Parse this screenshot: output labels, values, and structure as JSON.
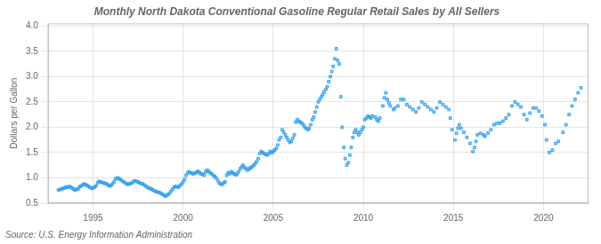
{
  "chart_data": {
    "type": "scatter",
    "title": "Monthly North Dakota Conventional Gasoline Regular Retail Sales by All Sellers",
    "ylabel": "Dollars per Gallon",
    "annotations": [
      "Source: U.S. Energy Information Administration"
    ],
    "marker": "square",
    "grid": true,
    "xlim": [
      1992.5,
      2022.5
    ],
    "ylim": [
      0.5,
      4.05
    ],
    "xticks": [
      1995,
      2000,
      2005,
      2010,
      2015,
      2020
    ],
    "yticks": [
      0.5,
      {
        "value": 1.0,
        "label": "1.0"
      },
      1.5,
      {
        "value": 2.0,
        "label": "2.0"
      },
      2.5,
      {
        "value": 3.0,
        "label": "3.0"
      },
      3.5,
      {
        "value": 4.0,
        "label": "4.0"
      }
    ],
    "x": [
      1993.08,
      1993.17,
      1993.25,
      1993.33,
      1993.42,
      1993.5,
      1993.58,
      1993.67,
      1993.75,
      1993.83,
      1993.92,
      1994.0,
      1994.08,
      1994.17,
      1994.25,
      1994.33,
      1994.42,
      1994.5,
      1994.58,
      1994.67,
      1994.75,
      1994.83,
      1994.92,
      1995.0,
      1995.08,
      1995.17,
      1995.25,
      1995.33,
      1995.42,
      1995.5,
      1995.58,
      1995.67,
      1995.75,
      1995.83,
      1995.92,
      1996.0,
      1996.08,
      1996.17,
      1996.25,
      1996.33,
      1996.42,
      1996.5,
      1996.58,
      1996.67,
      1996.75,
      1996.83,
      1996.92,
      1997.0,
      1997.08,
      1997.17,
      1997.25,
      1997.33,
      1997.42,
      1997.5,
      1997.58,
      1997.67,
      1997.75,
      1997.83,
      1997.92,
      1998.0,
      1998.08,
      1998.17,
      1998.25,
      1998.33,
      1998.42,
      1998.5,
      1998.58,
      1998.67,
      1998.75,
      1998.83,
      1998.92,
      1999.0,
      1999.08,
      1999.17,
      1999.25,
      1999.33,
      1999.42,
      1999.5,
      1999.58,
      1999.67,
      1999.75,
      1999.83,
      1999.92,
      2000.0,
      2000.08,
      2000.17,
      2000.25,
      2000.33,
      2000.42,
      2000.5,
      2000.58,
      2000.67,
      2000.75,
      2000.83,
      2000.92,
      2001.0,
      2001.08,
      2001.17,
      2001.25,
      2001.33,
      2001.42,
      2001.5,
      2001.58,
      2001.67,
      2001.75,
      2001.83,
      2001.92,
      2002.0,
      2002.08,
      2002.17,
      2002.25,
      2002.33,
      2002.42,
      2002.5,
      2002.58,
      2002.67,
      2002.75,
      2002.83,
      2002.92,
      2003.0,
      2003.08,
      2003.17,
      2003.25,
      2003.33,
      2003.42,
      2003.5,
      2003.58,
      2003.67,
      2003.75,
      2003.83,
      2003.92,
      2004.0,
      2004.08,
      2004.17,
      2004.25,
      2004.33,
      2004.42,
      2004.5,
      2004.58,
      2004.67,
      2004.75,
      2004.83,
      2004.92,
      2005.0,
      2005.08,
      2005.17,
      2005.25,
      2005.33,
      2005.42,
      2005.5,
      2005.58,
      2005.67,
      2005.75,
      2005.83,
      2005.92,
      2006.0,
      2006.08,
      2006.17,
      2006.25,
      2006.33,
      2006.42,
      2006.5,
      2006.58,
      2006.67,
      2006.75,
      2006.83,
      2006.92,
      2007.0,
      2007.08,
      2007.17,
      2007.25,
      2007.33,
      2007.42,
      2007.5,
      2007.58,
      2007.67,
      2007.75,
      2007.83,
      2007.92,
      2008.0,
      2008.08,
      2008.17,
      2008.25,
      2008.33,
      2008.42,
      2008.5,
      2008.58,
      2008.67,
      2008.75,
      2008.83,
      2008.92,
      2009.0,
      2009.08,
      2009.17,
      2009.25,
      2009.33,
      2009.42,
      2009.5,
      2009.58,
      2009.67,
      2009.75,
      2009.83,
      2009.92,
      2010.0,
      2010.08,
      2010.17,
      2010.25,
      2010.33,
      2010.42,
      2010.5,
      2010.67,
      2010.75,
      2010.83,
      2010.92,
      2011.08,
      2011.17,
      2011.25,
      2011.33,
      2011.42,
      2011.5,
      2011.67,
      2011.75,
      2011.92,
      2012.08,
      2012.25,
      2012.42,
      2012.58,
      2012.75,
      2012.92,
      2013.08,
      2013.25,
      2013.42,
      2013.58,
      2013.75,
      2013.92,
      2014.08,
      2014.25,
      2014.42,
      2014.58,
      2014.75,
      2014.83,
      2014.92,
      2015.08,
      2015.17,
      2015.25,
      2015.33,
      2015.42,
      2015.58,
      2015.75,
      2015.92,
      2016.08,
      2016.17,
      2016.25,
      2016.33,
      2016.5,
      2016.67,
      2016.75,
      2016.92,
      2017.08,
      2017.25,
      2017.42,
      2017.58,
      2017.75,
      2017.92,
      2018.08,
      2018.25,
      2018.42,
      2018.58,
      2018.75,
      2018.92,
      2019.08,
      2019.25,
      2019.42,
      2019.58,
      2019.75,
      2019.92,
      2020.08,
      2020.17,
      2020.33,
      2020.5,
      2020.67,
      2020.83,
      2021.08,
      2021.25,
      2021.42,
      2021.58,
      2021.75,
      2021.92,
      2022.08
    ],
    "values": [
      0.76,
      0.77,
      0.78,
      0.79,
      0.8,
      0.82,
      0.81,
      0.83,
      0.82,
      0.8,
      0.78,
      0.76,
      0.77,
      0.78,
      0.82,
      0.84,
      0.86,
      0.88,
      0.87,
      0.85,
      0.83,
      0.81,
      0.79,
      0.8,
      0.82,
      0.84,
      0.9,
      0.93,
      0.92,
      0.91,
      0.9,
      0.89,
      0.88,
      0.86,
      0.84,
      0.85,
      0.88,
      0.92,
      0.98,
      1.0,
      0.99,
      0.97,
      0.95,
      0.93,
      0.91,
      0.89,
      0.87,
      0.88,
      0.89,
      0.9,
      0.93,
      0.94,
      0.93,
      0.92,
      0.9,
      0.89,
      0.88,
      0.86,
      0.84,
      0.82,
      0.8,
      0.79,
      0.78,
      0.76,
      0.74,
      0.73,
      0.72,
      0.71,
      0.7,
      0.68,
      0.66,
      0.64,
      0.65,
      0.67,
      0.7,
      0.74,
      0.78,
      0.82,
      0.83,
      0.82,
      0.82,
      0.85,
      0.88,
      0.92,
      0.97,
      1.05,
      1.1,
      1.12,
      1.1,
      1.09,
      1.08,
      1.1,
      1.11,
      1.13,
      1.1,
      1.08,
      1.07,
      1.05,
      1.12,
      1.15,
      1.13,
      1.1,
      1.08,
      1.05,
      1.03,
      1.0,
      0.95,
      0.9,
      0.88,
      0.87,
      0.9,
      0.92,
      1.05,
      1.1,
      1.08,
      1.12,
      1.1,
      1.08,
      1.06,
      1.08,
      1.12,
      1.18,
      1.22,
      1.25,
      1.2,
      1.18,
      1.15,
      1.18,
      1.2,
      1.22,
      1.25,
      1.28,
      1.32,
      1.38,
      1.48,
      1.52,
      1.5,
      1.48,
      1.46,
      1.45,
      1.48,
      1.52,
      1.5,
      1.52,
      1.55,
      1.58,
      1.65,
      1.75,
      1.8,
      1.95,
      1.9,
      1.85,
      1.8,
      1.75,
      1.7,
      1.72,
      1.78,
      1.85,
      2.1,
      2.15,
      2.12,
      2.1,
      2.08,
      2.05,
      2.0,
      1.98,
      1.95,
      1.98,
      2.05,
      2.15,
      2.2,
      2.3,
      2.4,
      2.5,
      2.55,
      2.6,
      2.65,
      2.7,
      2.75,
      2.8,
      2.9,
      3.0,
      3.1,
      3.2,
      3.35,
      3.55,
      3.32,
      3.25,
      2.6,
      2.0,
      1.6,
      1.38,
      1.25,
      1.3,
      1.45,
      1.6,
      1.8,
      1.9,
      1.95,
      1.9,
      1.85,
      1.9,
      1.95,
      2.0,
      2.15,
      2.18,
      2.22,
      2.2,
      2.18,
      2.22,
      2.2,
      2.15,
      2.12,
      2.18,
      2.42,
      2.58,
      2.68,
      2.55,
      2.48,
      2.42,
      2.35,
      2.38,
      2.42,
      2.55,
      2.55,
      2.45,
      2.4,
      2.35,
      2.3,
      2.38,
      2.5,
      2.45,
      2.4,
      2.35,
      2.3,
      2.38,
      2.5,
      2.45,
      2.4,
      2.35,
      2.18,
      1.95,
      1.75,
      1.88,
      1.98,
      2.05,
      1.98,
      1.9,
      1.8,
      1.68,
      1.52,
      1.6,
      1.72,
      1.85,
      1.88,
      1.85,
      1.82,
      1.88,
      1.95,
      2.05,
      2.08,
      2.08,
      2.12,
      2.18,
      2.25,
      2.42,
      2.5,
      2.45,
      2.4,
      2.25,
      2.15,
      2.28,
      2.38,
      2.38,
      2.32,
      2.22,
      2.05,
      1.75,
      1.5,
      1.55,
      1.68,
      1.72,
      1.9,
      2.05,
      2.25,
      2.42,
      2.55,
      2.68,
      2.78
    ]
  }
}
